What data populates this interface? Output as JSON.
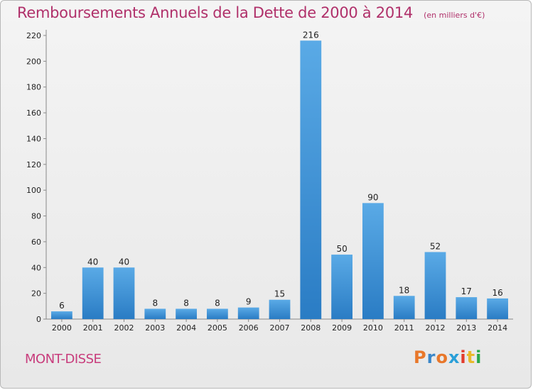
{
  "header": {
    "title": "Remboursements Annuels de la Dette de 2000 à 2014",
    "unit": "(en milliers d'€)"
  },
  "footer": {
    "town": "MONT-DISSE",
    "logo_text": "Proxiti",
    "logo_colors": [
      "#e8772a",
      "#3a86c8",
      "#e8772a",
      "#2a9fd8",
      "#e23b2c",
      "#e8b92a",
      "#2aa84a"
    ]
  },
  "colors": {
    "title": "#b0306a",
    "bar_light": "#5aaae6",
    "bar_dark": "#2a7cc4"
  },
  "chart_data": {
    "type": "bar",
    "title": "Remboursements Annuels de la Dette de 2000 à 2014",
    "subtitle": "(en milliers d'€)",
    "xlabel": "",
    "ylabel": "",
    "categories": [
      "2000",
      "2001",
      "2002",
      "2003",
      "2004",
      "2005",
      "2006",
      "2007",
      "2008",
      "2009",
      "2010",
      "2011",
      "2012",
      "2013",
      "2014"
    ],
    "values": [
      6,
      40,
      40,
      8,
      8,
      8,
      9,
      15,
      216,
      50,
      90,
      18,
      52,
      17,
      16
    ],
    "ylim": [
      0,
      220
    ],
    "yticks": [
      0,
      20,
      40,
      60,
      80,
      100,
      120,
      140,
      160,
      180,
      200,
      220
    ],
    "grid": false,
    "data_labels": true
  }
}
